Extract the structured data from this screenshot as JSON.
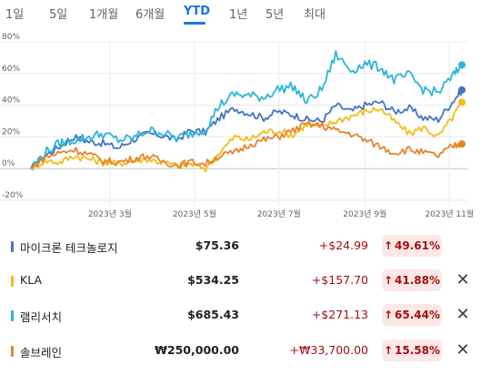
{
  "ranges": {
    "tabs": [
      "1일",
      "5일",
      "1개월",
      "6개월",
      "YTD",
      "1년",
      "5년",
      "최대"
    ],
    "active": "YTD"
  },
  "chart_data": {
    "type": "line",
    "y_unit": "%",
    "ylim": [
      -20,
      80
    ],
    "y_ticks": [
      "80%",
      "60%",
      "40%",
      "20%",
      "0%",
      "-20%"
    ],
    "x_ticks": [
      "2023년 3월",
      "2023년 5월",
      "2023년 7월",
      "2023년 9월",
      "2023년 11월"
    ],
    "x_range": [
      "2023-01-03",
      "2023-11-10"
    ],
    "grid": true,
    "series": [
      {
        "name": "마이크론 테크놀로지",
        "color": "#4374c4",
        "final_value": 49.61,
        "x": [
          "2023-01-03",
          "2023-01-13",
          "2023-01-24",
          "2023-02-03",
          "2023-02-14",
          "2023-02-24",
          "2023-03-07",
          "2023-03-17",
          "2023-03-28",
          "2023-04-07",
          "2023-04-18",
          "2023-04-28",
          "2023-05-09",
          "2023-05-19",
          "2023-05-30",
          "2023-06-09",
          "2023-06-20",
          "2023-06-30",
          "2023-07-11",
          "2023-07-21",
          "2023-08-01",
          "2023-08-11",
          "2023-08-22",
          "2023-09-01",
          "2023-09-12",
          "2023-09-22",
          "2023-10-03",
          "2023-10-13",
          "2023-10-24",
          "2023-11-03",
          "2023-11-10"
        ],
        "y": [
          0,
          8,
          14,
          20,
          17,
          16,
          13,
          18,
          22,
          21,
          18,
          24,
          23,
          32,
          38,
          35,
          32,
          36,
          34,
          31,
          30,
          40,
          36,
          40,
          42,
          36,
          38,
          32,
          31,
          42,
          49.61
        ]
      },
      {
        "name": "KLA",
        "color": "#f2bd18",
        "final_value": 41.88,
        "x": [
          "2023-01-03",
          "2023-01-13",
          "2023-01-24",
          "2023-02-03",
          "2023-02-14",
          "2023-02-24",
          "2023-03-07",
          "2023-03-17",
          "2023-03-28",
          "2023-04-07",
          "2023-04-18",
          "2023-04-28",
          "2023-05-09",
          "2023-05-19",
          "2023-05-30",
          "2023-06-09",
          "2023-06-20",
          "2023-06-30",
          "2023-07-11",
          "2023-07-21",
          "2023-08-01",
          "2023-08-11",
          "2023-08-22",
          "2023-09-01",
          "2023-09-12",
          "2023-09-22",
          "2023-10-03",
          "2023-10-13",
          "2023-10-24",
          "2023-11-03",
          "2023-11-10"
        ],
        "y": [
          0,
          5,
          4,
          8,
          6,
          4,
          3,
          5,
          6,
          4,
          2,
          3,
          0,
          10,
          20,
          18,
          23,
          24,
          21,
          28,
          26,
          30,
          33,
          36,
          38,
          30,
          22,
          26,
          20,
          32,
          41.88
        ]
      },
      {
        "name": "램리서치",
        "color": "#2bb5d8",
        "final_value": 65.44,
        "x": [
          "2023-01-03",
          "2023-01-13",
          "2023-01-24",
          "2023-02-03",
          "2023-02-14",
          "2023-02-24",
          "2023-03-07",
          "2023-03-17",
          "2023-03-28",
          "2023-04-07",
          "2023-04-18",
          "2023-04-28",
          "2023-05-09",
          "2023-05-19",
          "2023-05-30",
          "2023-06-09",
          "2023-06-20",
          "2023-06-30",
          "2023-07-11",
          "2023-07-21",
          "2023-08-01",
          "2023-08-11",
          "2023-08-22",
          "2023-09-01",
          "2023-09-12",
          "2023-09-22",
          "2023-10-03",
          "2023-10-13",
          "2023-10-24",
          "2023-11-03",
          "2023-11-10"
        ],
        "y": [
          0,
          10,
          16,
          18,
          20,
          22,
          18,
          19,
          24,
          23,
          19,
          22,
          25,
          40,
          47,
          46,
          45,
          50,
          52,
          42,
          50,
          72,
          62,
          66,
          64,
          56,
          59,
          50,
          48,
          58,
          65.44
        ]
      },
      {
        "name": "솔브레인",
        "color": "#e8832a",
        "final_value": 15.58,
        "x": [
          "2023-01-03",
          "2023-01-13",
          "2023-01-24",
          "2023-02-03",
          "2023-02-14",
          "2023-02-24",
          "2023-03-07",
          "2023-03-17",
          "2023-03-28",
          "2023-04-07",
          "2023-04-18",
          "2023-04-28",
          "2023-05-09",
          "2023-05-19",
          "2023-05-30",
          "2023-06-09",
          "2023-06-20",
          "2023-06-30",
          "2023-07-11",
          "2023-07-21",
          "2023-08-01",
          "2023-08-11",
          "2023-08-22",
          "2023-09-01",
          "2023-09-12",
          "2023-09-22",
          "2023-10-03",
          "2023-10-13",
          "2023-10-24",
          "2023-11-03",
          "2023-11-10"
        ],
        "y": [
          0,
          7,
          10,
          12,
          9,
          5,
          4,
          6,
          8,
          5,
          2,
          4,
          3,
          8,
          10,
          15,
          18,
          20,
          24,
          28,
          27,
          24,
          22,
          18,
          14,
          10,
          12,
          10,
          8,
          14,
          15.58
        ]
      }
    ]
  },
  "stocks": [
    {
      "name": "마이크론 테크놀로지",
      "price": "$75.36",
      "change": "+$24.99",
      "percent": "49.61%",
      "color": "#4374c4",
      "removable": false
    },
    {
      "name": "KLA",
      "price": "$534.25",
      "change": "+$157.70",
      "percent": "41.88%",
      "color": "#f2bd18",
      "removable": true
    },
    {
      "name": "램리서치",
      "price": "$685.43",
      "change": "+$271.13",
      "percent": "65.44%",
      "color": "#2bb5d8",
      "removable": true
    },
    {
      "name": "솔브레인",
      "price": "₩250,000.00",
      "change": "+₩33,700.00",
      "percent": "15.58%",
      "color": "#e8832a",
      "removable": true
    }
  ],
  "icons": {
    "arrow": "arrow-up-icon",
    "remove": "close-icon"
  },
  "symbols": {
    "arrow": "↑",
    "close": "✕"
  }
}
